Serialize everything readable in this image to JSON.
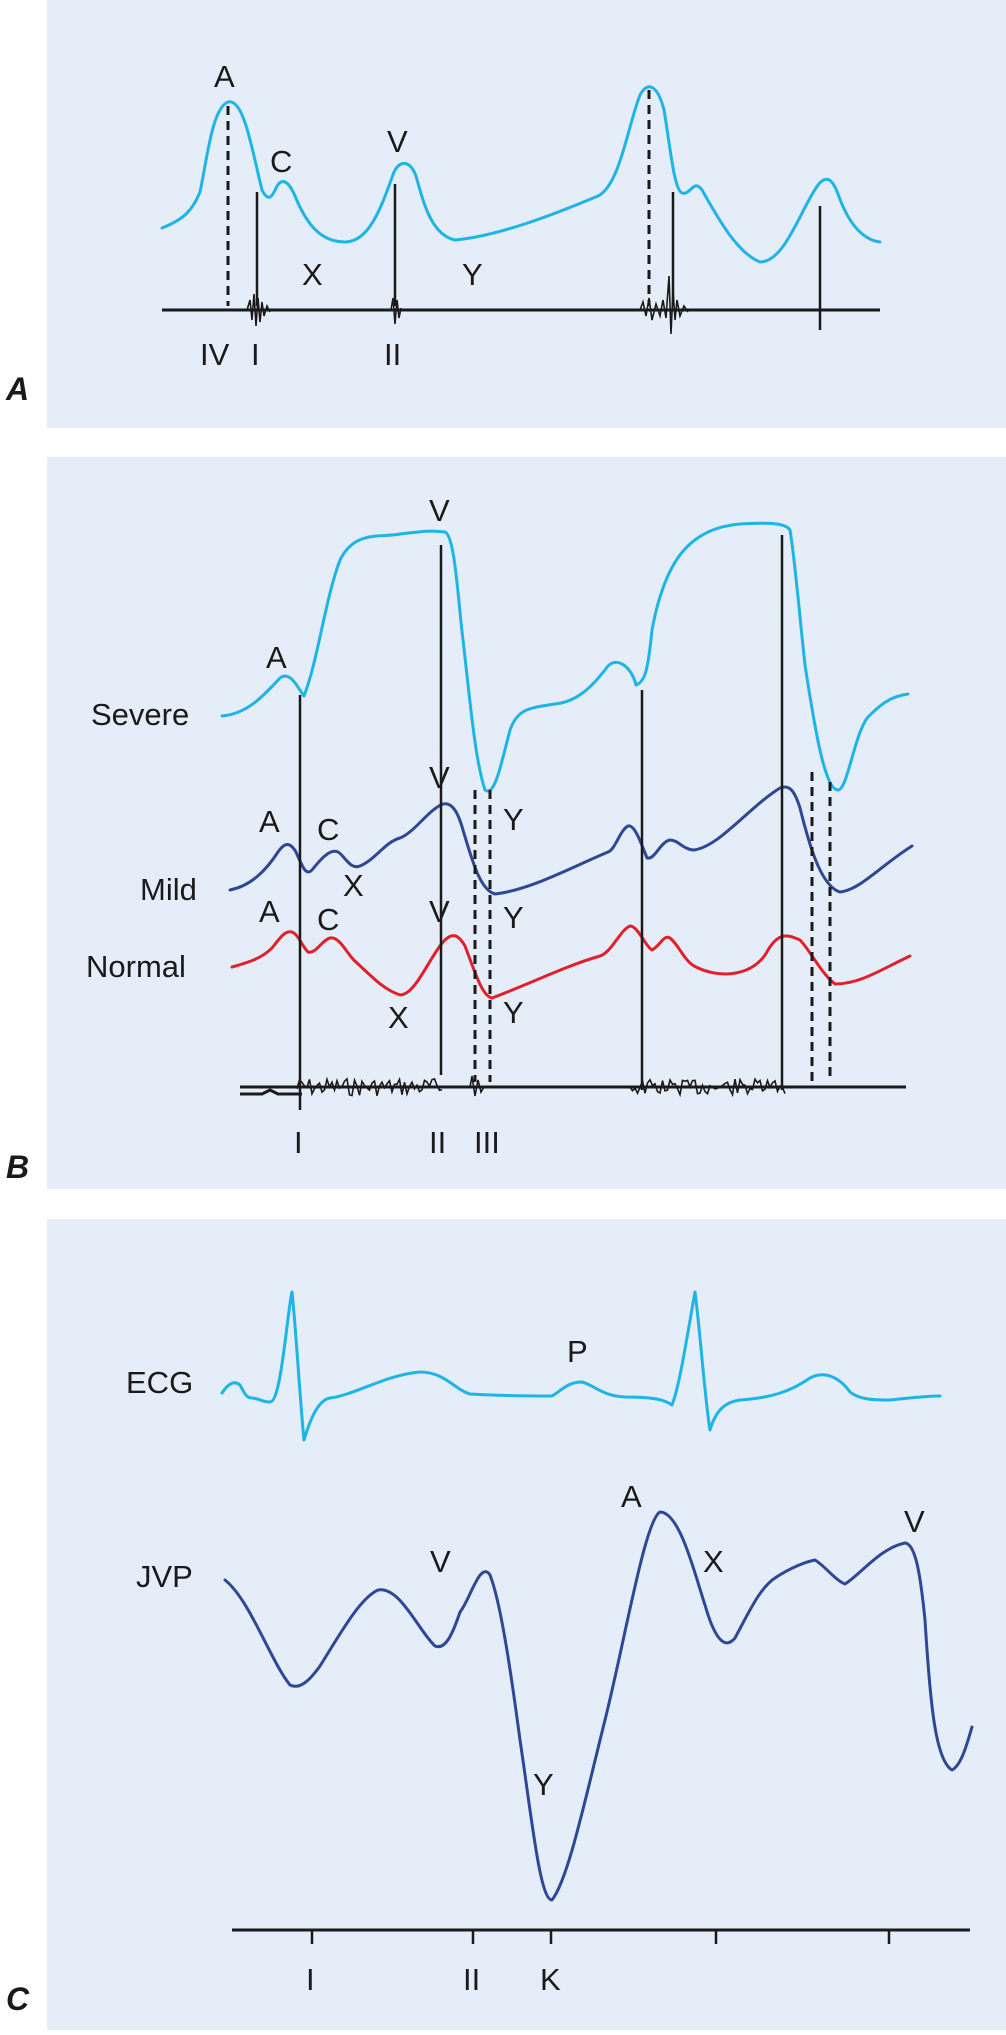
{
  "colors": {
    "panel_bg": "#e5edf8",
    "cyan": "#1fb4e6",
    "navy": "#2e4896",
    "red": "#e0212b",
    "ink": "#1a1a1a"
  },
  "panel_a": {
    "label": "A",
    "waves": [
      "A",
      "C",
      "V",
      "X",
      "Y"
    ],
    "sounds": [
      "IV",
      "I",
      "II"
    ]
  },
  "panel_b": {
    "label": "B",
    "traces": [
      "Severe",
      "Mild",
      "Normal"
    ],
    "severe_waves": [
      "A",
      "V",
      "Y"
    ],
    "mild_waves": [
      "A",
      "C",
      "V",
      "X",
      "Y"
    ],
    "normal_waves": [
      "A",
      "C",
      "V",
      "X",
      "Y"
    ],
    "sounds": [
      "I",
      "II",
      "III"
    ]
  },
  "panel_c": {
    "label": "C",
    "traces": [
      "ECG",
      "JVP"
    ],
    "ecg_wave": "P",
    "jvp_waves": [
      "V",
      "Y",
      "A",
      "X",
      "V"
    ],
    "ticks": [
      "I",
      "II",
      "K"
    ]
  }
}
